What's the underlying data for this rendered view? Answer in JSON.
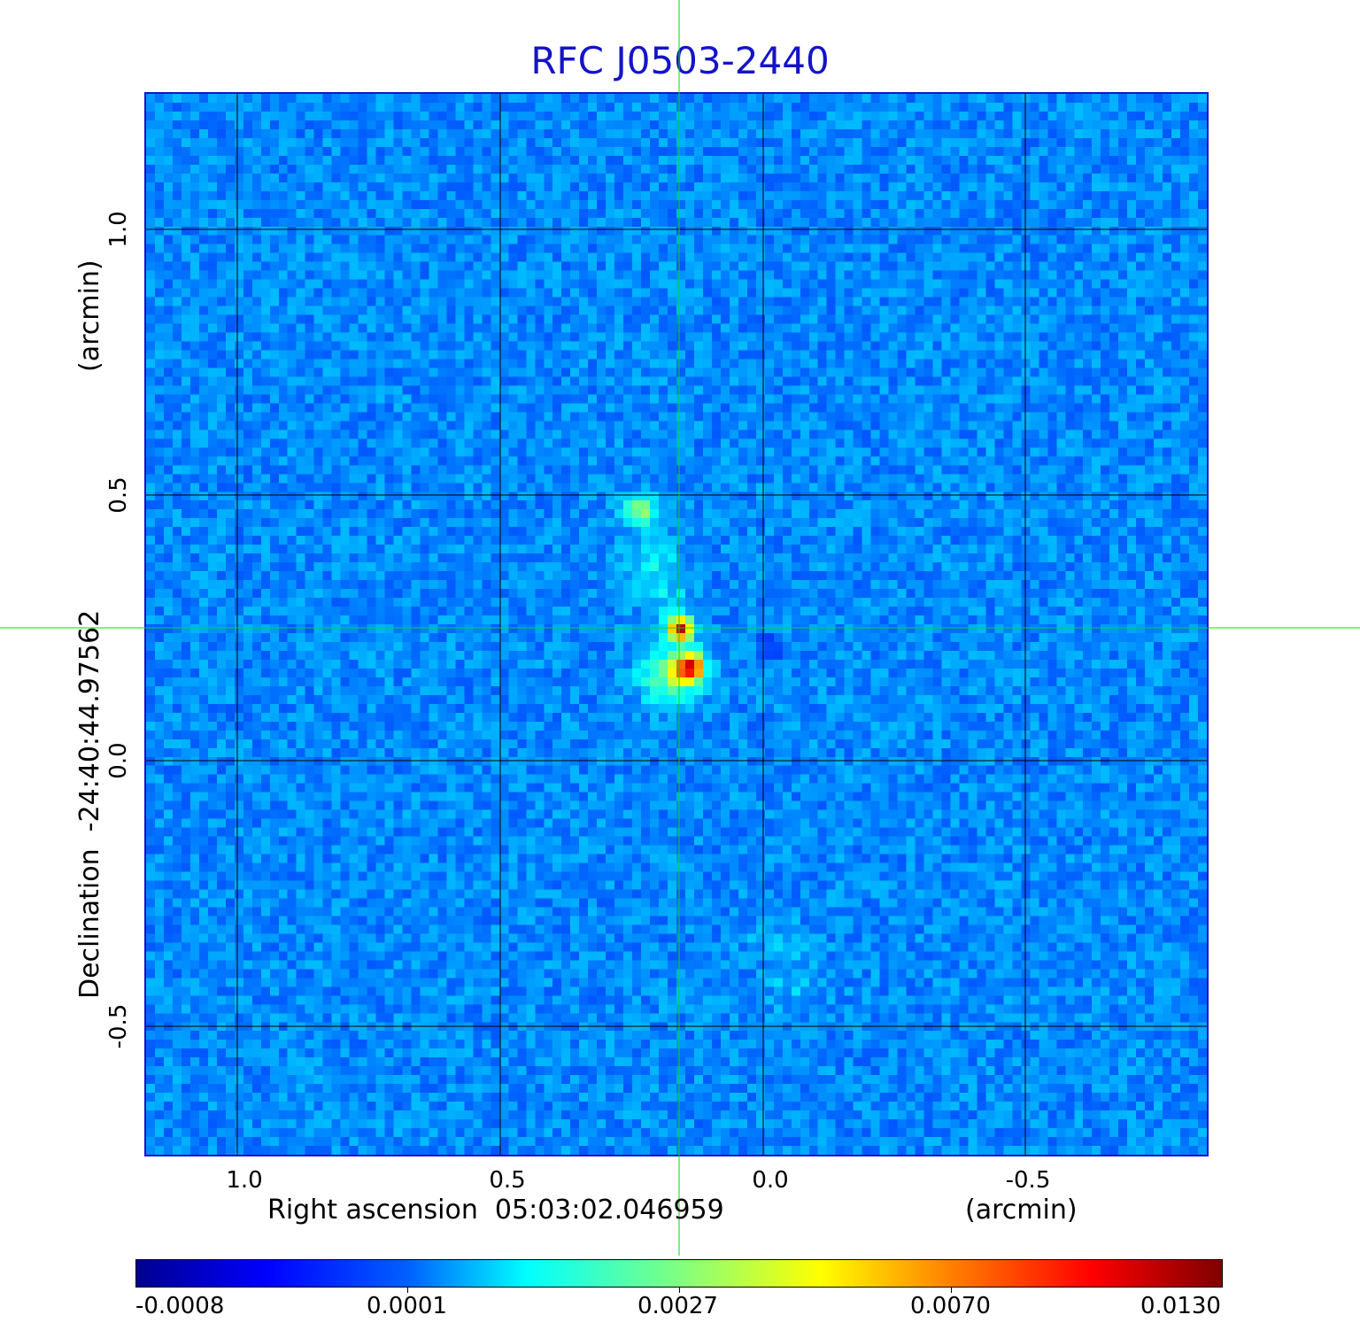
{
  "title": "RFC J0503-2440",
  "x_axis": {
    "label": "Right ascension  05:03:02.046959",
    "unit": "(arcmin)",
    "ticks": [
      "1.0",
      "0.5",
      "0.0",
      "-0.5"
    ]
  },
  "y_axis": {
    "label": "Declination  -24:40:44.97562",
    "unit": "(arcmin)",
    "ticks": [
      "1.0",
      "0.5",
      "0.0",
      "-0.5"
    ]
  },
  "colorbar": {
    "ticks": [
      "-0.0008",
      "0.0001",
      "0.0027",
      "0.0070",
      "0.0130"
    ]
  },
  "colors": {
    "title": "#1414c8",
    "frame": "#1414c8",
    "crosshair": "#00e000",
    "grid": "#000000"
  }
}
